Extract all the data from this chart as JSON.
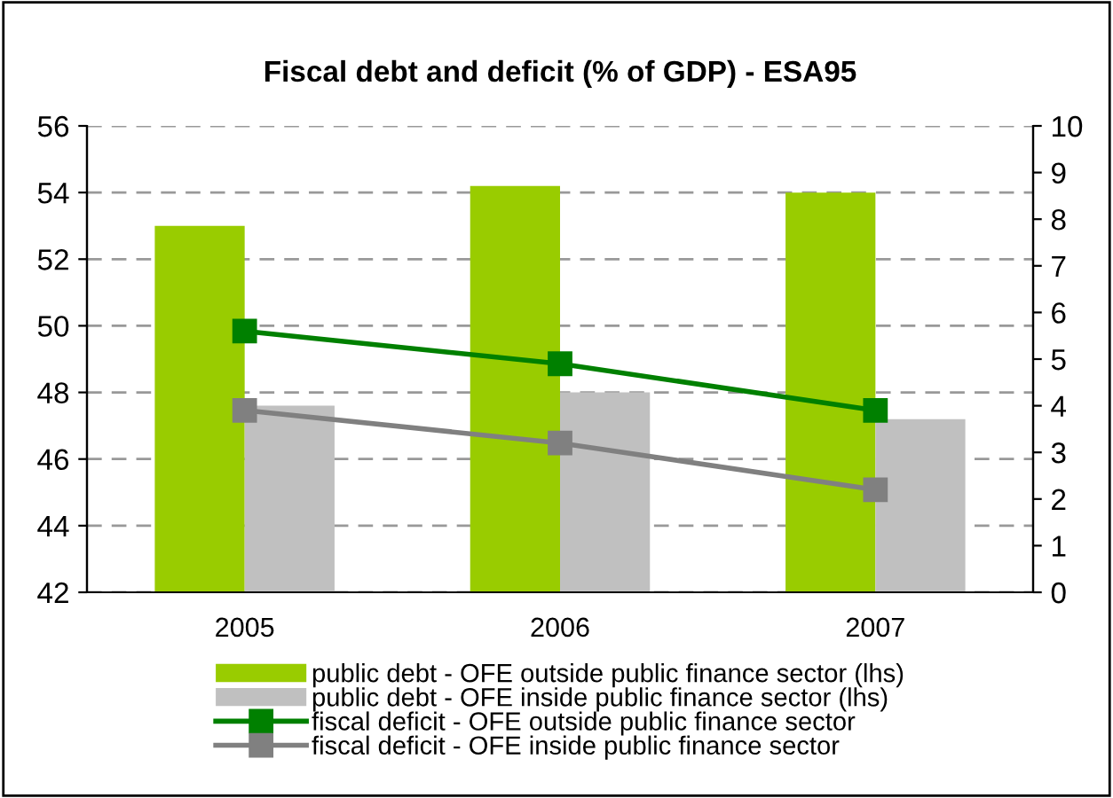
{
  "chart_data": {
    "type": "bar",
    "title": "Fiscal debt and deficit (% of GDP) - ESA95",
    "categories": [
      "2005",
      "2006",
      "2007"
    ],
    "series": [
      {
        "name": "public debt - OFE outside public finance sector (lhs)",
        "color": "#99cc00",
        "values": [
          53.0,
          54.2,
          54.0
        ]
      },
      {
        "name": "public debt - OFE inside public finance sector (lhs)",
        "color": "#c0c0c0",
        "values": [
          47.6,
          48.0,
          47.2
        ]
      },
      {
        "name": "fiscal deficit - OFE outside public finance sector",
        "color": "#008000",
        "type": "line",
        "axis": "y2",
        "values": [
          5.6,
          4.9,
          3.9
        ]
      },
      {
        "name": "fiscal deficit - OFE inside public finance sector",
        "color": "#808080",
        "type": "line",
        "axis": "y2",
        "values": [
          3.9,
          3.2,
          2.2
        ]
      }
    ],
    "ylim": [
      42,
      56
    ],
    "yticks": [
      42,
      44,
      46,
      48,
      50,
      52,
      54,
      56
    ],
    "y2lim": [
      0,
      10
    ],
    "y2ticks": [
      0,
      1,
      2,
      3,
      4,
      5,
      6,
      7,
      8,
      9,
      10
    ],
    "grid": "y",
    "legend": "bottom",
    "marker": "square",
    "line_style": "solid"
  }
}
